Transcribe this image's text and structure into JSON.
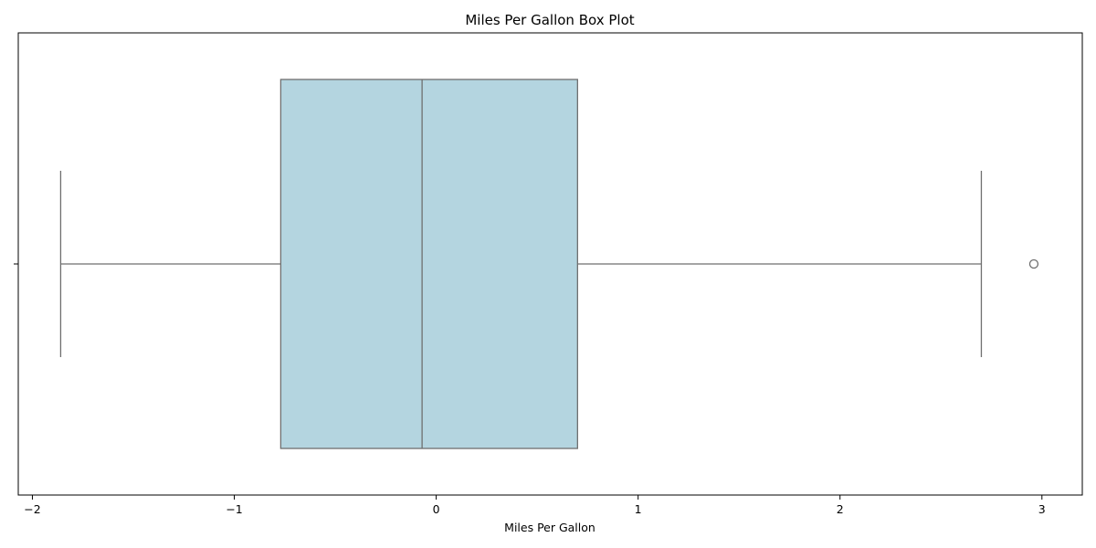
{
  "chart_data": {
    "type": "box",
    "orientation": "horizontal",
    "title": "Miles Per Gallon Box Plot",
    "xlabel": "Miles Per Gallon",
    "ylabel": "",
    "xlim": [
      -2.07,
      3.2
    ],
    "xticks": [
      -2,
      -1,
      0,
      1,
      2,
      3
    ],
    "xtick_labels": [
      "−2",
      "−1",
      "0",
      "1",
      "2",
      "3"
    ],
    "grid": false,
    "box": {
      "whisker_low": -1.86,
      "q1": -0.77,
      "median": -0.07,
      "q3": 0.7,
      "whisker_high": 2.7,
      "outliers": [
        2.96
      ]
    },
    "colors": {
      "box_fill": "#b4d5e0",
      "line": "#6f6f6f",
      "axis": "#000000"
    }
  }
}
